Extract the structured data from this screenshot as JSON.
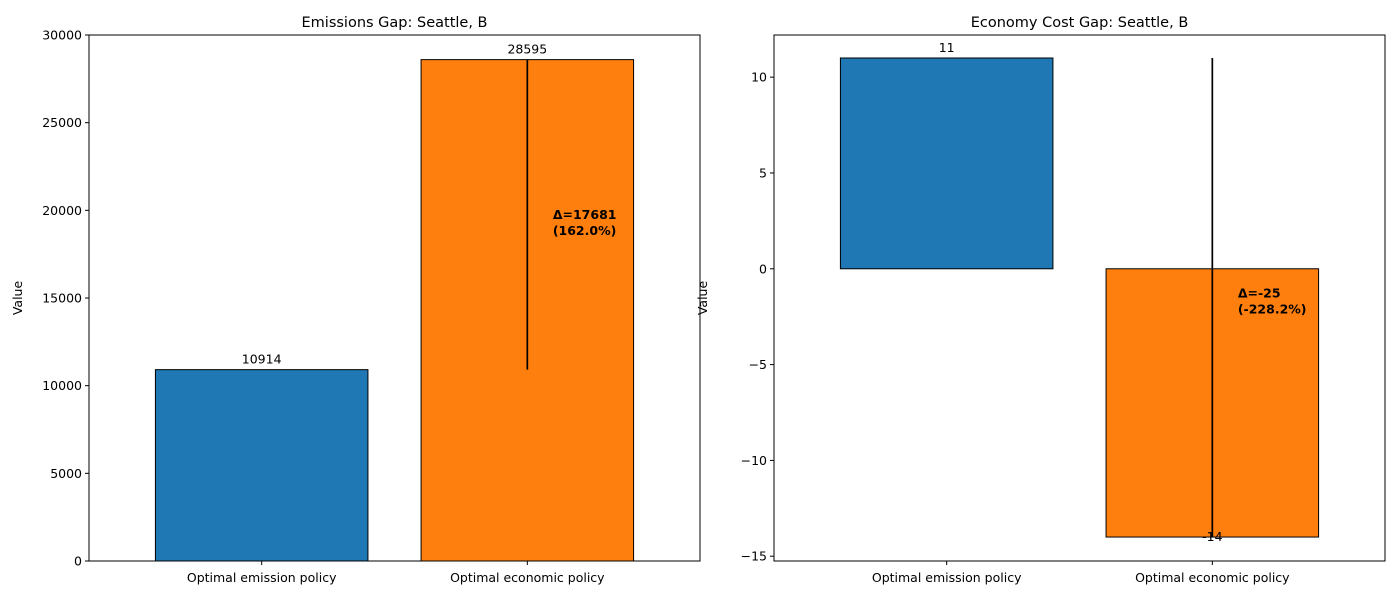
{
  "chart_data": [
    {
      "type": "bar",
      "title": "Emissions Gap: Seattle, B",
      "xlabel": "",
      "ylabel": "Value",
      "categories": [
        "Optimal emission policy",
        "Optimal economic policy"
      ],
      "values": [
        10914,
        28595
      ],
      "value_labels": [
        "10914",
        "28595"
      ],
      "colors": [
        "#1f77b4",
        "#ff7f0e"
      ],
      "ylim": [
        0,
        30000
      ],
      "yticks": [
        0,
        5000,
        10000,
        15000,
        20000,
        25000,
        30000
      ],
      "ytick_labels": [
        "0",
        "5000",
        "10000",
        "15000",
        "20000",
        "25000",
        "30000"
      ],
      "gap_line": {
        "from": 10914,
        "to": 28595
      },
      "annotation": {
        "line1": "Δ=17681",
        "line2": "(162.0%)",
        "y": 19500
      },
      "grid": false
    },
    {
      "type": "bar",
      "title": "Economy Cost Gap: Seattle, B",
      "xlabel": "",
      "ylabel": "Value",
      "categories": [
        "Optimal emission policy",
        "Optimal economic policy"
      ],
      "values": [
        11,
        -14
      ],
      "value_labels": [
        "11",
        "-14"
      ],
      "colors": [
        "#1f77b4",
        "#ff7f0e"
      ],
      "ylim": [
        -15.25,
        12.2
      ],
      "yticks": [
        -15,
        -10,
        -5,
        0,
        5,
        10
      ],
      "ytick_labels": [
        "−15",
        "−10",
        "−5",
        "0",
        "5",
        "10"
      ],
      "gap_line": {
        "from": 11,
        "to": -14
      },
      "annotation": {
        "line1": "Δ=-25",
        "line2": "(-228.2%)",
        "y": -1.5
      },
      "grid": false
    }
  ]
}
